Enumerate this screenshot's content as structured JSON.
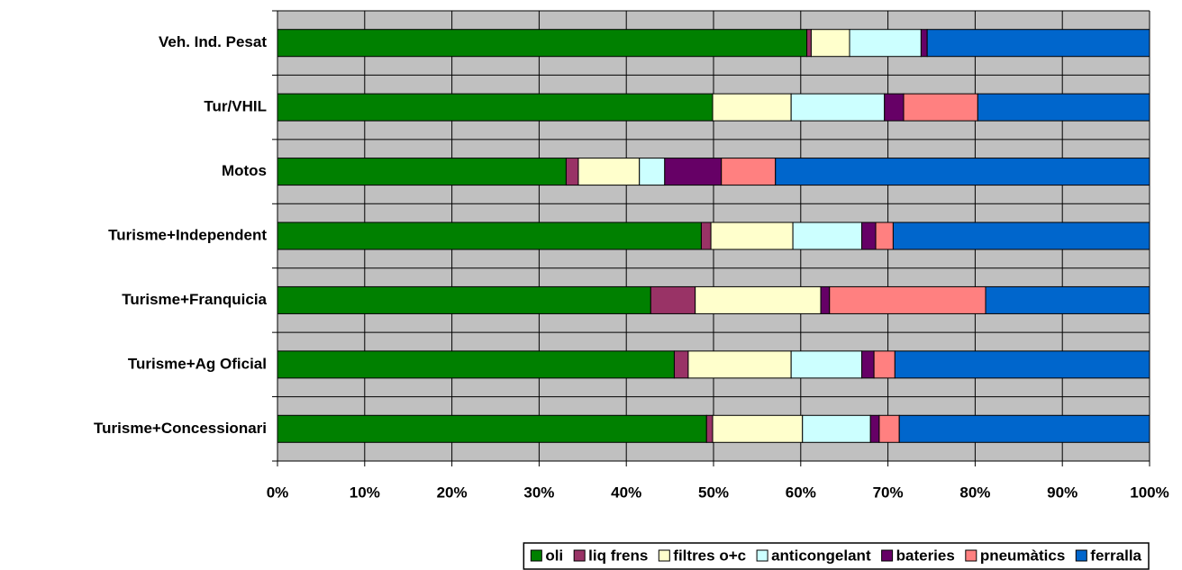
{
  "chart_data": {
    "type": "stacked_bar_horizontal",
    "categories": [
      "Veh. Ind. Pesat",
      "Tur/VHIL",
      "Motos",
      "Turisme+Independent",
      "Turisme+Franquicia",
      "Turisme+Ag Oficial",
      "Turisme+Concessionari"
    ],
    "series": [
      {
        "name": "oli",
        "color": "#008000",
        "values": [
          60.7,
          49.9,
          33.1,
          48.6,
          42.8,
          45.5,
          49.2
        ]
      },
      {
        "name": "liq frens",
        "color": "#993366",
        "values": [
          0.5,
          0,
          1.4,
          1.1,
          5.1,
          1.6,
          0.7
        ]
      },
      {
        "name": "filtres o+c",
        "color": "#ffffcc",
        "values": [
          4.4,
          9.0,
          7.0,
          9.4,
          14.4,
          11.8,
          10.3
        ]
      },
      {
        "name": "anticongelant",
        "color": "#ccffff",
        "values": [
          8.2,
          10.7,
          2.9,
          7.9,
          0,
          8.1,
          7.8
        ]
      },
      {
        "name": "bateries",
        "color": "#660066",
        "values": [
          0.7,
          2.2,
          6.5,
          1.6,
          1.0,
          1.4,
          1.0
        ]
      },
      {
        "name": "pneumàtics",
        "color": "#ff8080",
        "values": [
          0,
          8.5,
          6.2,
          2.0,
          17.9,
          2.4,
          2.3
        ]
      },
      {
        "name": "ferralla",
        "color": "#0066cc",
        "values": [
          25.5,
          19.7,
          42.9,
          29.4,
          18.8,
          29.2,
          28.7
        ]
      }
    ],
    "xlim": [
      0,
      100
    ],
    "xticks": [
      {
        "value": 0,
        "label": "0%"
      },
      {
        "value": 10,
        "label": "10%"
      },
      {
        "value": 20,
        "label": "20%"
      },
      {
        "value": 30,
        "label": "30%"
      },
      {
        "value": 40,
        "label": "40%"
      },
      {
        "value": 50,
        "label": "50%"
      },
      {
        "value": 60,
        "label": "60%"
      },
      {
        "value": 70,
        "label": "70%"
      },
      {
        "value": 80,
        "label": "80%"
      },
      {
        "value": 90,
        "label": "90%"
      },
      {
        "value": 100,
        "label": "100%"
      }
    ],
    "grid": true,
    "legend": "bottom"
  }
}
